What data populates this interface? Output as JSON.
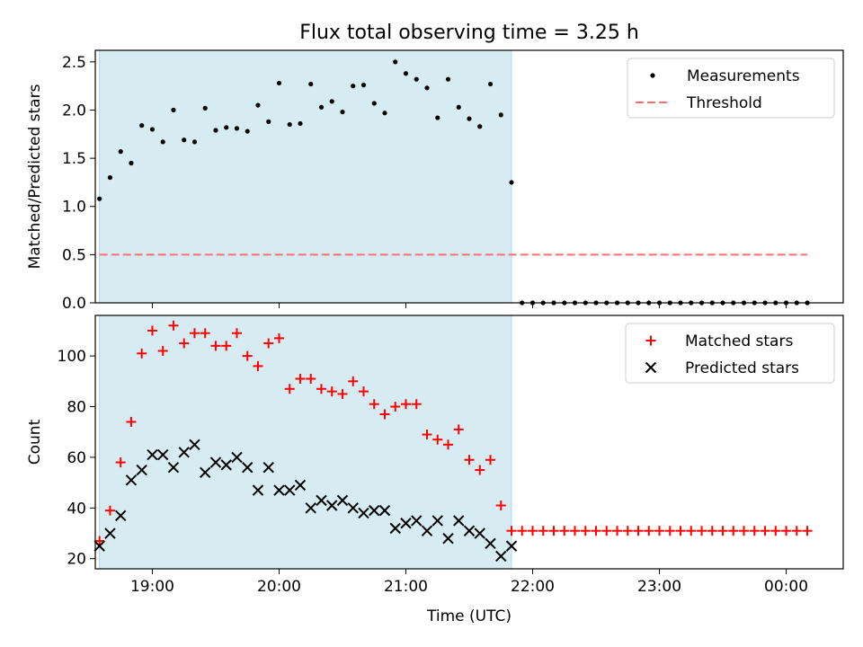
{
  "chart_data": {
    "title": "Flux total observing time = 3.25 h",
    "xlabel": "Time (UTC)",
    "xticks": [
      "19:00",
      "20:00",
      "21:00",
      "22:00",
      "23:00",
      "00:00"
    ],
    "xrange": [
      "18:33",
      "00:27"
    ],
    "shaded_span": [
      "18:35",
      "21:50"
    ],
    "shade_color": "#add8e6",
    "panels": [
      {
        "name": "ratio",
        "type": "scatter",
        "ylabel": "Matched/Predicted stars",
        "ylim": [
          0,
          2.62
        ],
        "yticks": [
          0.0,
          0.5,
          1.0,
          1.5,
          2.0,
          2.5
        ],
        "legend_position": "upper-right",
        "series": [
          {
            "name": "Measurements",
            "marker": "dot",
            "color": "#000000",
            "times": [
              "18:35",
              "18:40",
              "18:45",
              "18:50",
              "18:55",
              "19:00",
              "19:05",
              "19:10",
              "19:15",
              "19:20",
              "19:25",
              "19:30",
              "19:35",
              "19:40",
              "19:45",
              "19:50",
              "19:55",
              "20:00",
              "20:05",
              "20:10",
              "20:15",
              "20:20",
              "20:25",
              "20:30",
              "20:35",
              "20:40",
              "20:45",
              "20:50",
              "20:55",
              "21:00",
              "21:05",
              "21:10",
              "21:15",
              "21:20",
              "21:25",
              "21:30",
              "21:35",
              "21:40",
              "21:45",
              "21:50",
              "21:55",
              "22:00",
              "22:05",
              "22:10",
              "22:15",
              "22:20",
              "22:25",
              "22:30",
              "22:35",
              "22:40",
              "22:45",
              "22:50",
              "22:55",
              "23:00",
              "23:05",
              "23:10",
              "23:15",
              "23:20",
              "23:25",
              "23:30",
              "23:35",
              "23:40",
              "23:45",
              "23:50",
              "23:55",
              "00:00",
              "00:05",
              "00:10"
            ],
            "values": [
              1.08,
              1.3,
              1.57,
              1.45,
              1.84,
              1.8,
              1.67,
              2.0,
              1.69,
              1.67,
              2.02,
              1.79,
              1.82,
              1.81,
              1.78,
              2.05,
              1.88,
              2.28,
              1.85,
              1.86,
              2.27,
              2.03,
              2.09,
              1.98,
              2.25,
              2.26,
              2.07,
              1.97,
              2.5,
              2.38,
              2.32,
              2.23,
              1.92,
              2.32,
              2.03,
              1.91,
              1.83,
              2.27,
              1.95,
              1.25,
              0,
              0,
              0,
              0,
              0,
              0,
              0,
              0,
              0,
              0,
              0,
              0,
              0,
              0,
              0,
              0,
              0,
              0,
              0,
              0,
              0,
              0,
              0,
              0,
              0,
              0,
              0,
              0
            ]
          },
          {
            "name": "Threshold",
            "marker": "dashed-line",
            "color": "#ff7070",
            "times": [
              "18:35",
              "00:10"
            ],
            "values": [
              0.5,
              0.5
            ]
          }
        ]
      },
      {
        "name": "counts",
        "type": "scatter",
        "ylabel": "Count",
        "ylim": [
          16,
          116
        ],
        "yticks": [
          20,
          40,
          60,
          80,
          100
        ],
        "legend_position": "upper-right",
        "series": [
          {
            "name": "Matched stars",
            "marker": "plus",
            "color": "#ff0000",
            "times": [
              "18:35",
              "18:40",
              "18:45",
              "18:50",
              "18:55",
              "19:00",
              "19:05",
              "19:10",
              "19:15",
              "19:20",
              "19:25",
              "19:30",
              "19:35",
              "19:40",
              "19:45",
              "19:50",
              "19:55",
              "20:00",
              "20:05",
              "20:10",
              "20:15",
              "20:20",
              "20:25",
              "20:30",
              "20:35",
              "20:40",
              "20:45",
              "20:50",
              "20:55",
              "21:00",
              "21:05",
              "21:10",
              "21:15",
              "21:20",
              "21:25",
              "21:30",
              "21:35",
              "21:40",
              "21:45",
              "21:50",
              "21:55",
              "22:00",
              "22:05",
              "22:10",
              "22:15",
              "22:20",
              "22:25",
              "22:30",
              "22:35",
              "22:40",
              "22:45",
              "22:50",
              "22:55",
              "23:00",
              "23:05",
              "23:10",
              "23:15",
              "23:20",
              "23:25",
              "23:30",
              "23:35",
              "23:40",
              "23:45",
              "23:50",
              "23:55",
              "00:00",
              "00:05",
              "00:10"
            ],
            "values": [
              27,
              39,
              58,
              74,
              101,
              110,
              102,
              112,
              105,
              109,
              109,
              104,
              104,
              109,
              100,
              96,
              105,
              107,
              87,
              91,
              91,
              87,
              86,
              85,
              90,
              86,
              81,
              77,
              80,
              81,
              81,
              69,
              67,
              65,
              71,
              59,
              55,
              59,
              41,
              31,
              31,
              31,
              31,
              31,
              31,
              31,
              31,
              31,
              31,
              31,
              31,
              31,
              31,
              31,
              31,
              31,
              31,
              31,
              31,
              31,
              31,
              31,
              31,
              31,
              31,
              31,
              31,
              31
            ]
          },
          {
            "name": "Predicted stars",
            "marker": "x",
            "color": "#000000",
            "times": [
              "18:35",
              "18:40",
              "18:45",
              "18:50",
              "18:55",
              "19:00",
              "19:05",
              "19:10",
              "19:15",
              "19:20",
              "19:25",
              "19:30",
              "19:35",
              "19:40",
              "19:45",
              "19:50",
              "19:55",
              "20:00",
              "20:05",
              "20:10",
              "20:15",
              "20:20",
              "20:25",
              "20:30",
              "20:35",
              "20:40",
              "20:45",
              "20:50",
              "20:55",
              "21:00",
              "21:05",
              "21:10",
              "21:15",
              "21:20",
              "21:25",
              "21:30",
              "21:35",
              "21:40",
              "21:45",
              "21:50"
            ],
            "values": [
              25,
              30,
              37,
              51,
              55,
              61,
              61,
              56,
              62,
              65,
              54,
              58,
              57,
              60,
              56,
              47,
              56,
              47,
              47,
              49,
              40,
              43,
              41,
              43,
              40,
              38,
              39,
              39,
              32,
              34,
              35,
              31,
              35,
              28,
              35,
              31,
              30,
              26,
              21,
              25
            ]
          }
        ]
      }
    ]
  }
}
